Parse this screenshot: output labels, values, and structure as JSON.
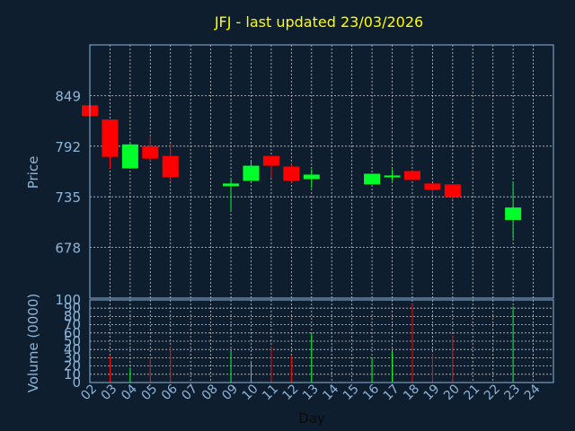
{
  "chart_data": [
    {
      "type": "candlestick",
      "title": "JFJ - last updated 23/03/2026",
      "ylabel": "Price",
      "ylim": [
        621,
        906
      ],
      "yticks": [
        678,
        735,
        792,
        849
      ],
      "grid": true,
      "colors": {
        "up": "#00ff2a",
        "down": "#ff0000",
        "title": "#ffff00",
        "axis": "#8db4d9",
        "grid": "#c8c8c8",
        "background": "#0f1e2e"
      },
      "categories": [
        "02",
        "03",
        "04",
        "05",
        "06",
        "07",
        "08",
        "09",
        "10",
        "11",
        "12",
        "13",
        "14",
        "15",
        "16",
        "17",
        "18",
        "19",
        "20",
        "21",
        "22",
        "23",
        "24"
      ],
      "candles": [
        {
          "day": "02",
          "open": 838,
          "close": 826,
          "high": 838,
          "low": 826
        },
        {
          "day": "03",
          "open": 822,
          "close": 780,
          "high": 822,
          "low": 767
        },
        {
          "day": "04",
          "open": 767,
          "close": 794,
          "high": 796,
          "low": 767
        },
        {
          "day": "05",
          "open": 792,
          "close": 778,
          "high": 804,
          "low": 775
        },
        {
          "day": "06",
          "open": 781,
          "close": 757,
          "high": 795,
          "low": 752
        },
        {
          "day": "09",
          "open": 747,
          "close": 750,
          "high": 756,
          "low": 719
        },
        {
          "day": "10",
          "open": 753,
          "close": 770,
          "high": 775,
          "low": 753
        },
        {
          "day": "11",
          "open": 781,
          "close": 770,
          "high": 781,
          "low": 756
        },
        {
          "day": "12",
          "open": 769,
          "close": 753,
          "high": 772,
          "low": 751
        },
        {
          "day": "13",
          "open": 755,
          "close": 760,
          "high": 766,
          "low": 745
        },
        {
          "day": "16",
          "open": 749,
          "close": 761,
          "high": 761,
          "low": 749
        },
        {
          "day": "17",
          "open": 757,
          "close": 759,
          "high": 766,
          "low": 753
        },
        {
          "day": "18",
          "open": 764,
          "close": 754,
          "high": 764,
          "low": 754
        },
        {
          "day": "19",
          "open": 750,
          "close": 743,
          "high": 750,
          "low": 736
        },
        {
          "day": "20",
          "open": 749,
          "close": 735,
          "high": 749,
          "low": 732
        },
        {
          "day": "23",
          "open": 709,
          "close": 723,
          "high": 752,
          "low": 688
        }
      ]
    },
    {
      "type": "bar",
      "ylabel": "Volume (0000)",
      "xlabel": "Day",
      "ylim": [
        0,
        100
      ],
      "yticks": [
        0,
        10,
        20,
        30,
        40,
        50,
        60,
        70,
        80,
        90,
        100
      ],
      "categories": [
        "02",
        "03",
        "04",
        "05",
        "06",
        "07",
        "08",
        "09",
        "10",
        "11",
        "12",
        "13",
        "14",
        "15",
        "16",
        "17",
        "18",
        "19",
        "20",
        "21",
        "22",
        "23",
        "24"
      ],
      "bars": [
        {
          "day": "03",
          "value": 32,
          "color": "#ff0000"
        },
        {
          "day": "04",
          "value": 18,
          "color": "#00ff2a"
        },
        {
          "day": "05",
          "value": 30,
          "color": "#ff0000"
        },
        {
          "day": "06",
          "value": 44,
          "color": "#ff0000"
        },
        {
          "day": "09",
          "value": 38,
          "color": "#00ff2a"
        },
        {
          "day": "10",
          "value": 25,
          "color": "#00ff2a"
        },
        {
          "day": "11",
          "value": 43,
          "color": "#ff0000"
        },
        {
          "day": "12",
          "value": 32,
          "color": "#ff0000"
        },
        {
          "day": "13",
          "value": 60,
          "color": "#00ff2a"
        },
        {
          "day": "16",
          "value": 30,
          "color": "#00ff2a"
        },
        {
          "day": "17",
          "value": 37,
          "color": "#00ff2a"
        },
        {
          "day": "18",
          "value": 95,
          "color": "#ff0000"
        },
        {
          "day": "19",
          "value": 35,
          "color": "#ff0000"
        },
        {
          "day": "20",
          "value": 57,
          "color": "#ff0000"
        },
        {
          "day": "23",
          "value": 92,
          "color": "#00ff2a"
        }
      ]
    }
  ]
}
